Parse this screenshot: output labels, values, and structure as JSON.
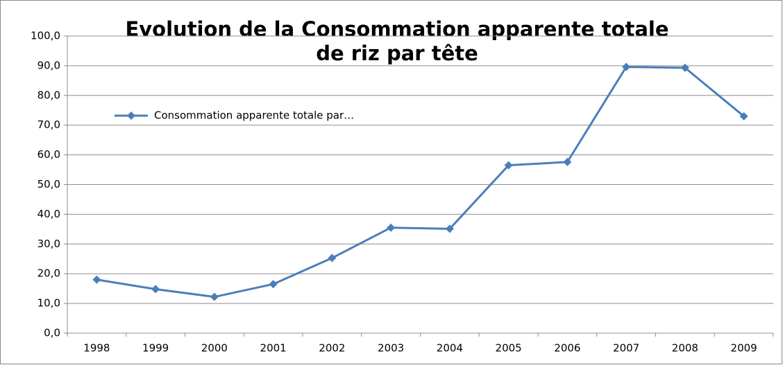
{
  "chart_data": {
    "type": "line",
    "title": [
      "Evolution de la Consommation apparente totale",
      "de riz par tête"
    ],
    "categories": [
      "1998",
      "1999",
      "2000",
      "2001",
      "2002",
      "2003",
      "2004",
      "2005",
      "2006",
      "2007",
      "2008",
      "2009"
    ],
    "series": [
      {
        "name": "Consommation apparente totale par…",
        "color": "#4a7ebb",
        "values": [
          18.0,
          14.8,
          12.2,
          16.5,
          25.3,
          35.5,
          35.1,
          56.5,
          57.6,
          89.6,
          89.3,
          73.0
        ]
      }
    ],
    "ylim": [
      0,
      100
    ],
    "yticks": [
      {
        "value": 0,
        "label": "0,0"
      },
      {
        "value": 10,
        "label": "10,0"
      },
      {
        "value": 20,
        "label": "20,0"
      },
      {
        "value": 30,
        "label": "30,0"
      },
      {
        "value": 40,
        "label": "40,0"
      },
      {
        "value": 50,
        "label": "50,0"
      },
      {
        "value": 60,
        "label": "60,0"
      },
      {
        "value": 70,
        "label": "70,0"
      },
      {
        "value": 80,
        "label": "80,0"
      },
      {
        "value": 90,
        "label": "90,0"
      },
      {
        "value": 100,
        "label": "100,0"
      }
    ],
    "grid": true,
    "legend": "upper-left"
  }
}
